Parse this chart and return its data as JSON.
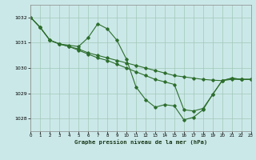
{
  "background_color": "#cbe8e8",
  "grid_color": "#a0c8b8",
  "line_color": "#2d6e2d",
  "marker_color": "#2d6e2d",
  "xlabel": "Graphe pression niveau de la mer (hPa)",
  "xlim": [
    0,
    23
  ],
  "ylim": [
    1027.5,
    1032.5
  ],
  "yticks": [
    1028,
    1029,
    1030,
    1031,
    1032
  ],
  "xticks": [
    0,
    1,
    2,
    3,
    4,
    5,
    6,
    7,
    8,
    9,
    10,
    11,
    12,
    13,
    14,
    15,
    16,
    17,
    18,
    19,
    20,
    21,
    22,
    23
  ],
  "series1": [
    [
      0,
      1032.0
    ],
    [
      1,
      1031.6
    ],
    [
      2,
      1031.1
    ],
    [
      3,
      1030.95
    ],
    [
      4,
      1030.9
    ],
    [
      5,
      1030.85
    ],
    [
      6,
      1031.2
    ],
    [
      7,
      1031.75
    ],
    [
      8,
      1031.55
    ],
    [
      9,
      1031.1
    ],
    [
      10,
      1030.35
    ],
    [
      11,
      1029.25
    ],
    [
      12,
      1028.75
    ],
    [
      13,
      1028.45
    ],
    [
      14,
      1028.55
    ],
    [
      15,
      1028.5
    ],
    [
      16,
      1027.95
    ],
    [
      17,
      1028.05
    ],
    [
      18,
      1028.35
    ],
    [
      19,
      1028.95
    ],
    [
      20,
      1029.5
    ],
    [
      21,
      1029.6
    ],
    [
      22,
      1029.55
    ],
    [
      23,
      1029.55
    ]
  ],
  "series2": [
    [
      0,
      1032.0
    ],
    [
      1,
      1031.6
    ],
    [
      2,
      1031.1
    ],
    [
      3,
      1030.95
    ],
    [
      4,
      1030.85
    ],
    [
      5,
      1030.75
    ],
    [
      6,
      1030.6
    ],
    [
      7,
      1030.5
    ],
    [
      8,
      1030.4
    ],
    [
      9,
      1030.3
    ],
    [
      10,
      1030.2
    ],
    [
      11,
      1030.1
    ],
    [
      12,
      1030.0
    ],
    [
      13,
      1029.9
    ],
    [
      14,
      1029.8
    ],
    [
      15,
      1029.7
    ],
    [
      16,
      1029.65
    ],
    [
      17,
      1029.6
    ],
    [
      18,
      1029.55
    ],
    [
      19,
      1029.52
    ],
    [
      20,
      1029.5
    ],
    [
      21,
      1029.55
    ],
    [
      22,
      1029.55
    ],
    [
      23,
      1029.55
    ]
  ],
  "series3": [
    [
      0,
      1032.0
    ],
    [
      1,
      1031.6
    ],
    [
      2,
      1031.1
    ],
    [
      3,
      1030.95
    ],
    [
      4,
      1030.85
    ],
    [
      5,
      1030.7
    ],
    [
      6,
      1030.55
    ],
    [
      7,
      1030.4
    ],
    [
      8,
      1030.3
    ],
    [
      9,
      1030.15
    ],
    [
      10,
      1030.0
    ],
    [
      11,
      1029.85
    ],
    [
      12,
      1029.7
    ],
    [
      13,
      1029.55
    ],
    [
      14,
      1029.45
    ],
    [
      15,
      1029.35
    ],
    [
      16,
      1028.35
    ],
    [
      17,
      1028.3
    ],
    [
      18,
      1028.4
    ],
    [
      19,
      1028.95
    ],
    [
      20,
      1029.5
    ],
    [
      21,
      1029.6
    ],
    [
      22,
      1029.55
    ],
    [
      23,
      1029.55
    ]
  ]
}
